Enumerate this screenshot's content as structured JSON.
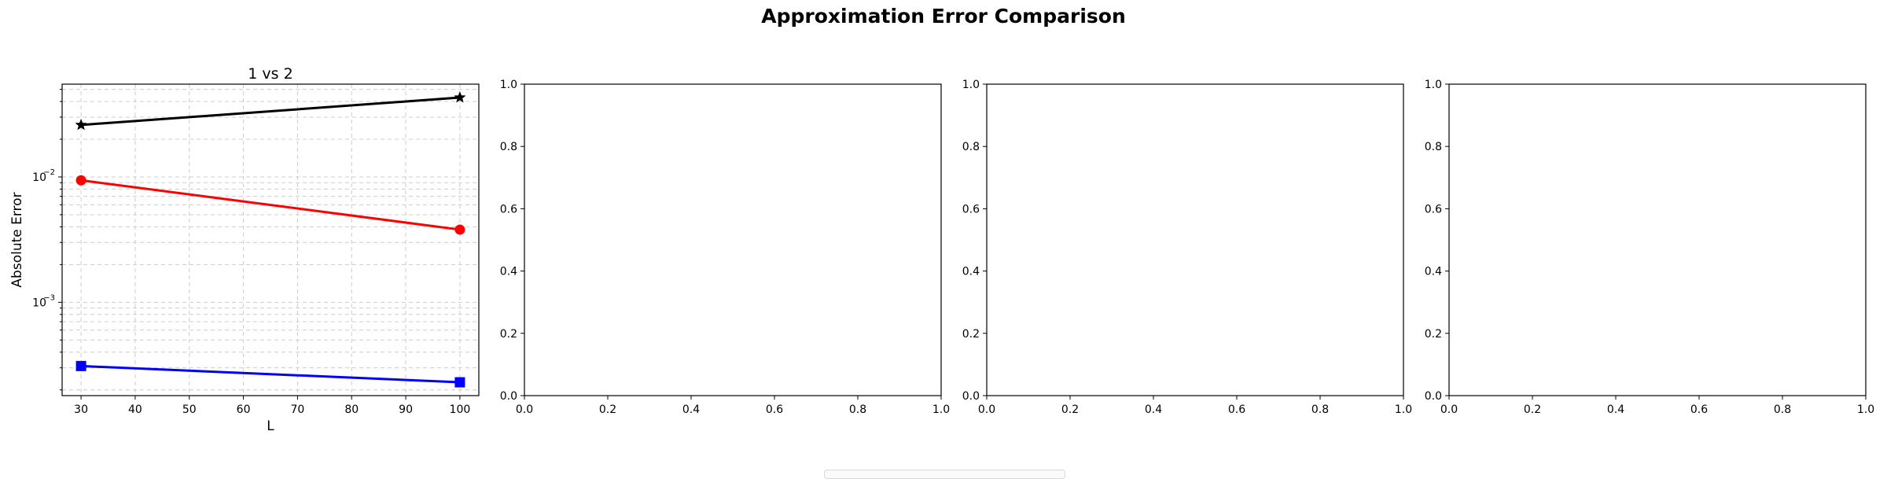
{
  "figure": {
    "title": "Approximation Error Comparison"
  },
  "chart_data": [
    {
      "type": "line",
      "title": "1 vs 2",
      "xlabel": "L",
      "ylabel": "Absolute Error",
      "yscale": "log",
      "xlim": [
        26.5,
        103.5
      ],
      "ylim": [
        0.00018,
        0.055
      ],
      "xticks": [
        "30",
        "40",
        "50",
        "60",
        "70",
        "80",
        "90",
        "100"
      ],
      "yticks": [
        {
          "value": 0.001,
          "base": "10",
          "exp": "−3"
        },
        {
          "value": 0.01,
          "base": "10",
          "exp": "−2"
        }
      ],
      "grid": true,
      "x": [
        30,
        100
      ],
      "series": [
        {
          "values": [
            0.026,
            0.043
          ],
          "color": "#000000",
          "marker": "star"
        },
        {
          "values": [
            0.0094,
            0.0038
          ],
          "color": "#ff0000",
          "marker": "circle"
        },
        {
          "values": [
            0.00031,
            0.00023
          ],
          "color": "#0000ff",
          "marker": "square"
        }
      ]
    },
    {
      "type": "line",
      "title": "",
      "xlabel": "",
      "ylabel": "",
      "xlim": [
        0,
        1
      ],
      "ylim": [
        0,
        1
      ],
      "xticks": [
        "0.0",
        "0.2",
        "0.4",
        "0.6",
        "0.8",
        "1.0"
      ],
      "yticks": [
        "0.0",
        "0.2",
        "0.4",
        "0.6",
        "0.8",
        "1.0"
      ],
      "series": []
    },
    {
      "type": "line",
      "title": "",
      "xlabel": "",
      "ylabel": "",
      "xlim": [
        0,
        1
      ],
      "ylim": [
        0,
        1
      ],
      "xticks": [
        "0.0",
        "0.2",
        "0.4",
        "0.6",
        "0.8",
        "1.0"
      ],
      "yticks": [
        "0.0",
        "0.2",
        "0.4",
        "0.6",
        "0.8",
        "1.0"
      ],
      "series": []
    },
    {
      "type": "line",
      "title": "",
      "xlabel": "",
      "ylabel": "",
      "xlim": [
        0,
        1
      ],
      "ylim": [
        0,
        1
      ],
      "xticks": [
        "0.0",
        "0.2",
        "0.4",
        "0.6",
        "0.8",
        "1.0"
      ],
      "yticks": [
        "0.0",
        "0.2",
        "0.4",
        "0.6",
        "0.8",
        "1.0"
      ],
      "series": []
    }
  ]
}
